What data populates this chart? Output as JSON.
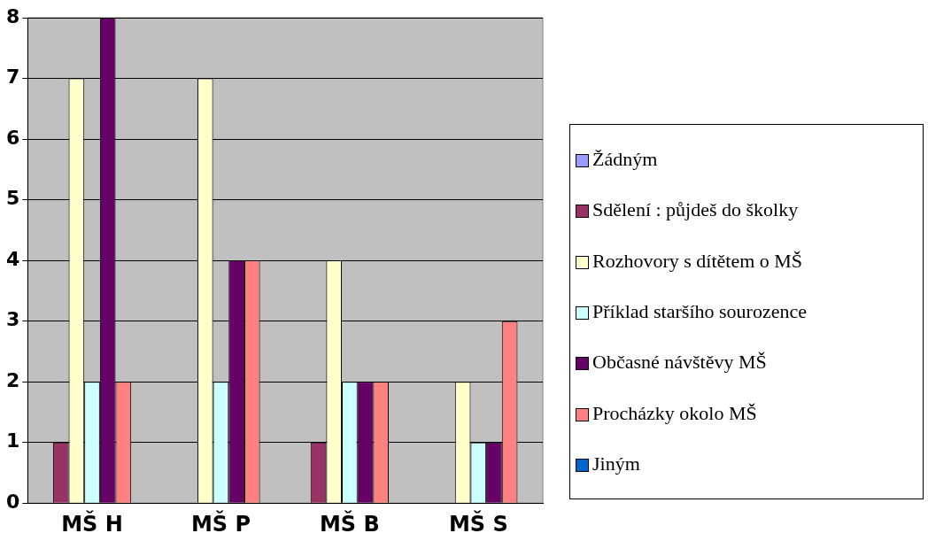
{
  "chart_data": {
    "type": "bar",
    "categories": [
      "MŠ H",
      "MŠ P",
      "MŠ B",
      "MŠ S"
    ],
    "series": [
      {
        "name": "Žádným",
        "color": "#9999ff",
        "values": [
          0,
          0,
          0,
          0
        ]
      },
      {
        "name": "Sdělení : půjdeš do školky",
        "color": "#993366",
        "values": [
          1,
          0,
          1,
          0
        ]
      },
      {
        "name": "Rozhovory s dítětem o MŠ",
        "color": "#ffffcc",
        "values": [
          7,
          7,
          4,
          2
        ]
      },
      {
        "name": "Příklad staršího sourozence",
        "color": "#ccffff",
        "values": [
          2,
          2,
          2,
          1
        ]
      },
      {
        "name": "Občasné návštěvy MŠ",
        "color": "#660066",
        "values": [
          8,
          4,
          2,
          1
        ]
      },
      {
        "name": "Procházky okolo MŠ",
        "color": "#ff8080",
        "values": [
          2,
          4,
          2,
          3
        ]
      },
      {
        "name": "Jiným",
        "color": "#0066cc",
        "values": [
          0,
          0,
          0,
          0
        ]
      }
    ],
    "ylim": [
      0,
      8
    ],
    "yticks": [
      0,
      1,
      2,
      3,
      4,
      5,
      6,
      7,
      8
    ],
    "grid": "y",
    "legend": "right"
  }
}
